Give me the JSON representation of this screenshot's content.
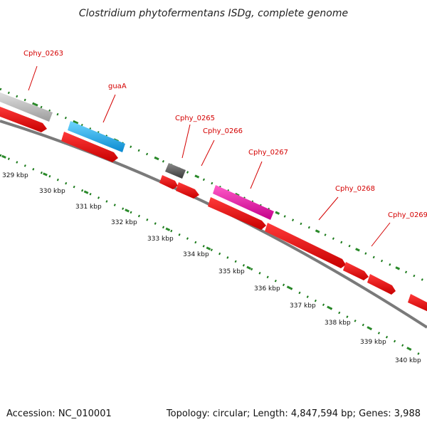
{
  "title": "Clostridium phytofermentans ISDg, complete genome",
  "footer": {
    "accession": "Accession: NC_010001",
    "topology": "Topology: circular; Length: 4,847,594 bp; Genes: 3,988"
  },
  "colors": {
    "backbone": "#8a8a8a",
    "ruler_major": "#2a8a2a",
    "ruler_minor": "#1a7a1a",
    "label": "#d40000",
    "cds": "#ee0000"
  },
  "gene_labels": [
    "Cphy_0263",
    "guaA",
    "Cphy_0265",
    "Cphy_0266",
    "Cphy_0267",
    "Cphy_0268",
    "Cphy_0269"
  ],
  "kbp_labels": [
    "329 kbp",
    "330 kbp",
    "331 kbp",
    "332 kbp",
    "333 kbp",
    "334 kbp",
    "335 kbp",
    "336 kbp",
    "337 kbp",
    "338 kbp",
    "339 kbp",
    "340 kbp"
  ]
}
